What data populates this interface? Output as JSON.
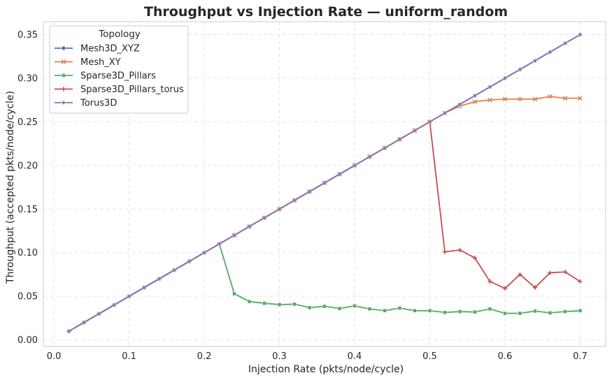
{
  "chart_data": {
    "type": "line",
    "title": "Throughput vs Injection Rate — uniform_random",
    "xlabel": "Injection Rate (pkts/node/cycle)",
    "ylabel": "Throughput (accepted pkts/node/cycle)",
    "xlim": [
      -0.014,
      0.734
    ],
    "ylim": [
      -0.0075,
      0.3648
    ],
    "xticks": [
      0.0,
      0.1,
      0.2,
      0.3,
      0.4,
      0.5,
      0.6,
      0.7
    ],
    "xtick_labels": [
      "0.0",
      "0.1",
      "0.2",
      "0.3",
      "0.4",
      "0.5",
      "0.6",
      "0.7"
    ],
    "yticks": [
      0.0,
      0.05,
      0.1,
      0.15,
      0.2,
      0.25,
      0.3,
      0.35
    ],
    "ytick_labels": [
      "0.00",
      "0.05",
      "0.10",
      "0.15",
      "0.20",
      "0.25",
      "0.30",
      "0.35"
    ],
    "grid": true,
    "legend": {
      "title": "Topology",
      "position": "top-left"
    },
    "series": [
      {
        "name": "Mesh3D_XYZ",
        "color": "#4c72b0",
        "marker": "circle",
        "x": [
          0.02,
          0.04,
          0.06,
          0.08,
          0.1,
          0.12,
          0.14,
          0.16,
          0.18,
          0.2,
          0.22,
          0.24,
          0.26,
          0.28,
          0.3,
          0.32,
          0.34,
          0.36,
          0.38,
          0.4,
          0.42,
          0.44,
          0.46,
          0.48,
          0.5,
          0.52,
          0.54,
          0.56,
          0.58,
          0.6,
          0.62,
          0.64,
          0.66,
          0.68,
          0.7
        ],
        "y": [
          0.01,
          0.02,
          0.03,
          0.04,
          0.05,
          0.06,
          0.07,
          0.08,
          0.09,
          0.1,
          0.11,
          0.12,
          0.13,
          0.14,
          0.15,
          0.16,
          0.17,
          0.18,
          0.19,
          0.2,
          0.21,
          0.22,
          0.23,
          0.24,
          0.25,
          0.26,
          0.27,
          0.28,
          0.29,
          0.3,
          0.31,
          0.32,
          0.33,
          0.34,
          0.35
        ]
      },
      {
        "name": "Mesh_XY",
        "color": "#dd8452",
        "marker": "x",
        "x": [
          0.02,
          0.04,
          0.06,
          0.08,
          0.1,
          0.12,
          0.14,
          0.16,
          0.18,
          0.2,
          0.22,
          0.24,
          0.26,
          0.28,
          0.3,
          0.32,
          0.34,
          0.36,
          0.38,
          0.4,
          0.42,
          0.44,
          0.46,
          0.48,
          0.5,
          0.52,
          0.54,
          0.56,
          0.58,
          0.6,
          0.62,
          0.64,
          0.66,
          0.68,
          0.7
        ],
        "y": [
          0.01,
          0.02,
          0.03,
          0.04,
          0.05,
          0.06,
          0.07,
          0.08,
          0.09,
          0.1,
          0.11,
          0.12,
          0.13,
          0.14,
          0.15,
          0.16,
          0.17,
          0.18,
          0.19,
          0.2,
          0.21,
          0.22,
          0.23,
          0.24,
          0.25,
          0.26,
          0.268,
          0.273,
          0.275,
          0.276,
          0.276,
          0.276,
          0.279,
          0.277,
          0.277
        ]
      },
      {
        "name": "Sparse3D_Pillars",
        "color": "#55a868",
        "marker": "square",
        "x": [
          0.02,
          0.04,
          0.06,
          0.08,
          0.1,
          0.12,
          0.14,
          0.16,
          0.18,
          0.2,
          0.22,
          0.24,
          0.26,
          0.28,
          0.3,
          0.32,
          0.34,
          0.36,
          0.38,
          0.4,
          0.42,
          0.44,
          0.46,
          0.48,
          0.5,
          0.52,
          0.54,
          0.56,
          0.58,
          0.6,
          0.62,
          0.64,
          0.66,
          0.68,
          0.7
        ],
        "y": [
          0.01,
          0.02,
          0.03,
          0.04,
          0.05,
          0.06,
          0.07,
          0.08,
          0.09,
          0.1,
          0.11,
          0.053,
          0.044,
          0.042,
          0.0405,
          0.041,
          0.037,
          0.0385,
          0.036,
          0.039,
          0.0355,
          0.0335,
          0.0365,
          0.0335,
          0.0335,
          0.0315,
          0.0325,
          0.032,
          0.0355,
          0.0305,
          0.0305,
          0.033,
          0.031,
          0.0325,
          0.0335
        ]
      },
      {
        "name": "Sparse3D_Pillars_torus",
        "color": "#c44e52",
        "marker": "plus",
        "x": [
          0.02,
          0.04,
          0.06,
          0.08,
          0.1,
          0.12,
          0.14,
          0.16,
          0.18,
          0.2,
          0.22,
          0.24,
          0.26,
          0.28,
          0.3,
          0.32,
          0.34,
          0.36,
          0.38,
          0.4,
          0.42,
          0.44,
          0.46,
          0.48,
          0.5,
          0.52,
          0.54,
          0.56,
          0.58,
          0.6,
          0.62,
          0.64,
          0.66,
          0.68,
          0.7
        ],
        "y": [
          0.01,
          0.02,
          0.03,
          0.04,
          0.05,
          0.06,
          0.07,
          0.08,
          0.09,
          0.1,
          0.11,
          0.12,
          0.13,
          0.14,
          0.15,
          0.16,
          0.17,
          0.18,
          0.19,
          0.2,
          0.21,
          0.22,
          0.23,
          0.24,
          0.25,
          0.101,
          0.103,
          0.094,
          0.067,
          0.059,
          0.075,
          0.06,
          0.077,
          0.078,
          0.067
        ]
      },
      {
        "name": "Torus3D",
        "color": "#8172b3",
        "marker": "diamond",
        "x": [
          0.02,
          0.04,
          0.06,
          0.08,
          0.1,
          0.12,
          0.14,
          0.16,
          0.18,
          0.2,
          0.22,
          0.24,
          0.26,
          0.28,
          0.3,
          0.32,
          0.34,
          0.36,
          0.38,
          0.4,
          0.42,
          0.44,
          0.46,
          0.48,
          0.5,
          0.52,
          0.54,
          0.56,
          0.58,
          0.6,
          0.62,
          0.64,
          0.66,
          0.68,
          0.7
        ],
        "y": [
          0.01,
          0.02,
          0.03,
          0.04,
          0.05,
          0.06,
          0.07,
          0.08,
          0.09,
          0.1,
          0.11,
          0.12,
          0.13,
          0.14,
          0.15,
          0.16,
          0.17,
          0.18,
          0.19,
          0.2,
          0.21,
          0.22,
          0.23,
          0.24,
          0.25,
          0.26,
          0.27,
          0.28,
          0.29,
          0.3,
          0.31,
          0.32,
          0.33,
          0.34,
          0.35
        ]
      }
    ]
  }
}
